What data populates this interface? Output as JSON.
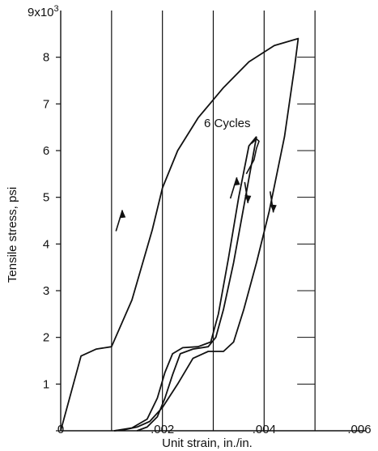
{
  "chart_data": {
    "type": "line",
    "title": "",
    "xlabel": "Unit strain, in./in.",
    "ylabel": "Tensile stress, psi",
    "xlim": [
      0,
      0.006
    ],
    "ylim": [
      0,
      9000
    ],
    "x_ticks": [
      {
        "value": 0,
        "label": "0"
      },
      {
        "value": 0.002,
        "label": ".002"
      },
      {
        "value": 0.004,
        "label": ".004"
      },
      {
        "value": 0.006,
        "label": ".006"
      }
    ],
    "y_ticks": [
      {
        "value": 1000,
        "label": "1"
      },
      {
        "value": 2000,
        "label": "2"
      },
      {
        "value": 3000,
        "label": "3"
      },
      {
        "value": 4000,
        "label": "4"
      },
      {
        "value": 5000,
        "label": "5"
      },
      {
        "value": 6000,
        "label": "6"
      },
      {
        "value": 7000,
        "label": "7"
      },
      {
        "value": 8000,
        "label": "8"
      }
    ],
    "y_multiplier_label": "9x10",
    "y_multiplier_exp": "3",
    "vertical_grid": [
      0.001,
      0.002,
      0.003,
      0.004,
      0.005
    ],
    "annotation": "6 Cycles",
    "series": [
      {
        "x": [
          0,
          0.0004,
          0.0007,
          0.001,
          0.0014,
          0.0018,
          0.002,
          0.0023,
          0.0027,
          0.0032,
          0.0037,
          0.0042,
          0.00467,
          0.0046,
          0.0044,
          0.0041,
          0.00385,
          0.0036,
          0.0034,
          0.0032,
          0.0029,
          0.0026,
          0.0023,
          0.002,
          0.00175,
          0.0015,
          0.00125,
          0.00105
        ],
        "y": [
          0,
          1600,
          1750,
          1800,
          2800,
          4300,
          5200,
          6000,
          6700,
          7350,
          7900,
          8250,
          8400,
          7800,
          6300,
          4700,
          3600,
          2600,
          1900,
          1700,
          1700,
          1550,
          1000,
          500,
          200,
          80,
          20,
          0
        ]
      },
      {
        "x": [
          0.00105,
          0.0014,
          0.0017,
          0.0019,
          0.00205,
          0.0022,
          0.0024,
          0.0027,
          0.00295,
          0.0031,
          0.0033,
          0.0035,
          0.0037,
          0.00385
        ],
        "y": [
          0,
          60,
          250,
          700,
          1250,
          1650,
          1780,
          1800,
          1900,
          2500,
          3700,
          5000,
          6100,
          6300
        ]
      },
      {
        "x": [
          0.00385,
          0.0038,
          0.0036,
          0.0034,
          0.0032,
          0.00305,
          0.0029,
          0.0026,
          0.00235,
          0.0022,
          0.00205,
          0.0019,
          0.0017,
          0.0015
        ],
        "y": [
          6300,
          6000,
          4800,
          3600,
          2600,
          2000,
          1800,
          1750,
          1650,
          1200,
          700,
          300,
          80,
          0
        ]
      },
      {
        "x": [
          0.00375,
          0.00385,
          0.0039,
          0.00385,
          0.0038,
          0.00365
        ],
        "y": [
          6150,
          6250,
          6200,
          6050,
          5800,
          5500
        ]
      }
    ],
    "arrows": [
      {
        "x": 0.00115,
        "y": 4500,
        "direction": "up"
      },
      {
        "x": 0.0034,
        "y": 5200,
        "direction": "up"
      },
      {
        "x": 0.00365,
        "y": 5100,
        "direction": "down"
      },
      {
        "x": 0.00415,
        "y": 4900,
        "direction": "down"
      }
    ]
  }
}
